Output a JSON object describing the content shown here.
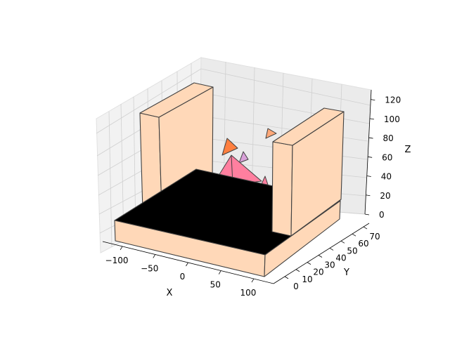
{
  "chart_data": {
    "type": "3d-poly",
    "title": "",
    "xlabel": "X",
    "ylabel": "Y",
    "zlabel": "Z",
    "xlim": [
      -130,
      130
    ],
    "ylim": [
      -10,
      75
    ],
    "zlim": [
      0,
      130
    ],
    "x_ticks": [
      -100,
      -50,
      0,
      50,
      100
    ],
    "y_ticks": [
      0,
      10,
      20,
      30,
      40,
      50,
      60,
      70
    ],
    "z_ticks": [
      0,
      20,
      40,
      60,
      80,
      100,
      120
    ],
    "grid": true,
    "colors": {
      "wall": "#ffd8b8",
      "floor": "#000000",
      "edge": "#404040",
      "pink": "#ff7f9f",
      "orange": "#ff7f3f",
      "light_orange": "#ffa878",
      "violet": "#d8a0d8"
    },
    "objects": [
      {
        "name": "floor-top",
        "kind": "box-top",
        "x": [
          -120,
          120
        ],
        "y": [
          -10,
          75
        ],
        "z": 15,
        "color": "floor"
      },
      {
        "name": "left-wall",
        "kind": "box",
        "x": [
          -120,
          -100
        ],
        "y": [
          40,
          75
        ],
        "z": [
          15,
          120
        ],
        "color": "wall"
      },
      {
        "name": "right-wall",
        "kind": "box",
        "x": [
          100,
          120
        ],
        "y": [
          40,
          75
        ],
        "z": [
          15,
          120
        ],
        "color": "wall"
      }
    ]
  }
}
